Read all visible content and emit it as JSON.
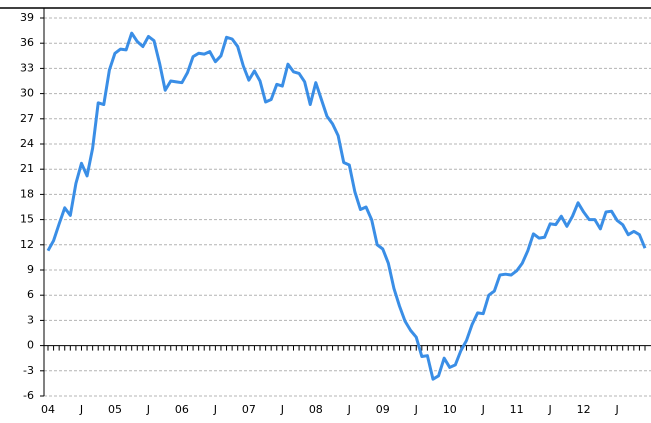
{
  "chart_data": {
    "type": "line",
    "categories": [
      "04",
      null,
      null,
      null,
      null,
      null,
      "J",
      null,
      null,
      null,
      null,
      null,
      "05",
      null,
      null,
      null,
      null,
      null,
      "J",
      null,
      null,
      null,
      null,
      null,
      "06",
      null,
      null,
      null,
      null,
      null,
      "J",
      null,
      null,
      null,
      null,
      null,
      "07",
      null,
      null,
      null,
      null,
      null,
      "J",
      null,
      null,
      null,
      null,
      null,
      "08",
      null,
      null,
      null,
      null,
      null,
      "J",
      null,
      null,
      null,
      null,
      null,
      "09",
      null,
      null,
      null,
      null,
      null,
      "J",
      null,
      null,
      null,
      null,
      null,
      "10",
      null,
      null,
      null,
      null,
      null,
      "J",
      null,
      null,
      null,
      null,
      null,
      "11",
      null,
      null,
      null,
      null,
      null,
      "J",
      null,
      null,
      null,
      null,
      null,
      "12",
      null,
      null,
      null,
      null,
      null,
      "J",
      null,
      null,
      null,
      null,
      null
    ],
    "series": [
      {
        "color": "#3a8ee6",
        "values": [
          11.3,
          12.5,
          14.5,
          16.4,
          15.5,
          19.3,
          21.7,
          20.2,
          23.5,
          28.9,
          28.7,
          32.8,
          34.8,
          35.3,
          35.2,
          37.2,
          36.2,
          35.6,
          36.8,
          36.3,
          33.6,
          30.4,
          31.5,
          31.4,
          31.3,
          32.5,
          34.4,
          34.8,
          34.7,
          35.0,
          33.8,
          34.5,
          36.7,
          36.5,
          35.6,
          33.3,
          31.6,
          32.7,
          31.5,
          29.0,
          29.3,
          31.1,
          30.9,
          33.5,
          32.6,
          32.4,
          31.4,
          28.7,
          31.3,
          29.3,
          27.3,
          26.4,
          25.0,
          21.8,
          21.5,
          18.3,
          16.2,
          16.5,
          15.0,
          12.0,
          11.5,
          9.8,
          6.8,
          4.7,
          2.9,
          1.8,
          1.0,
          -1.3,
          -1.2,
          -4.0,
          -3.6,
          -1.5,
          -2.6,
          -2.3,
          -0.6,
          0.6,
          2.5,
          3.9,
          3.8,
          6.0,
          6.5,
          8.4,
          8.5,
          8.4,
          8.9,
          9.8,
          11.3,
          13.3,
          12.8,
          12.9,
          14.5,
          14.4,
          15.4,
          14.2,
          15.4,
          17.0,
          15.9,
          15.0,
          15.0,
          13.9,
          15.9,
          16.0,
          14.9,
          14.4,
          13.2,
          13.6,
          13.2,
          11.6
        ]
      }
    ],
    "ylim": [
      -6,
      39
    ],
    "yticks": [
      -6,
      -3,
      0,
      3,
      6,
      9,
      12,
      15,
      18,
      21,
      24,
      27,
      30,
      33,
      36,
      39
    ],
    "grid": true
  }
}
